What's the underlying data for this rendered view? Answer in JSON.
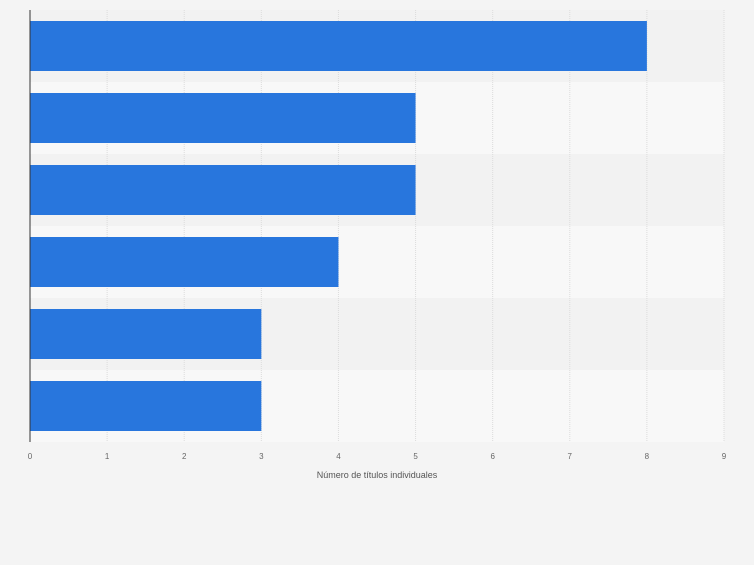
{
  "chart_data": {
    "type": "bar",
    "orientation": "horizontal",
    "categories": [
      "",
      "",
      "",
      "",
      "",
      ""
    ],
    "values": [
      8,
      5,
      5,
      4,
      3,
      3
    ],
    "xlabel": "Número de títulos individuales",
    "ylabel": "",
    "xlim": [
      0,
      9
    ],
    "xticks": [
      "0",
      "1",
      "2",
      "3",
      "4",
      "5",
      "6",
      "7",
      "8",
      "9"
    ],
    "grid": true,
    "legend": "none",
    "bar_color": "#2876dd",
    "band_colors": [
      "#f2f2f2",
      "#f8f8f8"
    ],
    "background": "#f4f4f4"
  }
}
